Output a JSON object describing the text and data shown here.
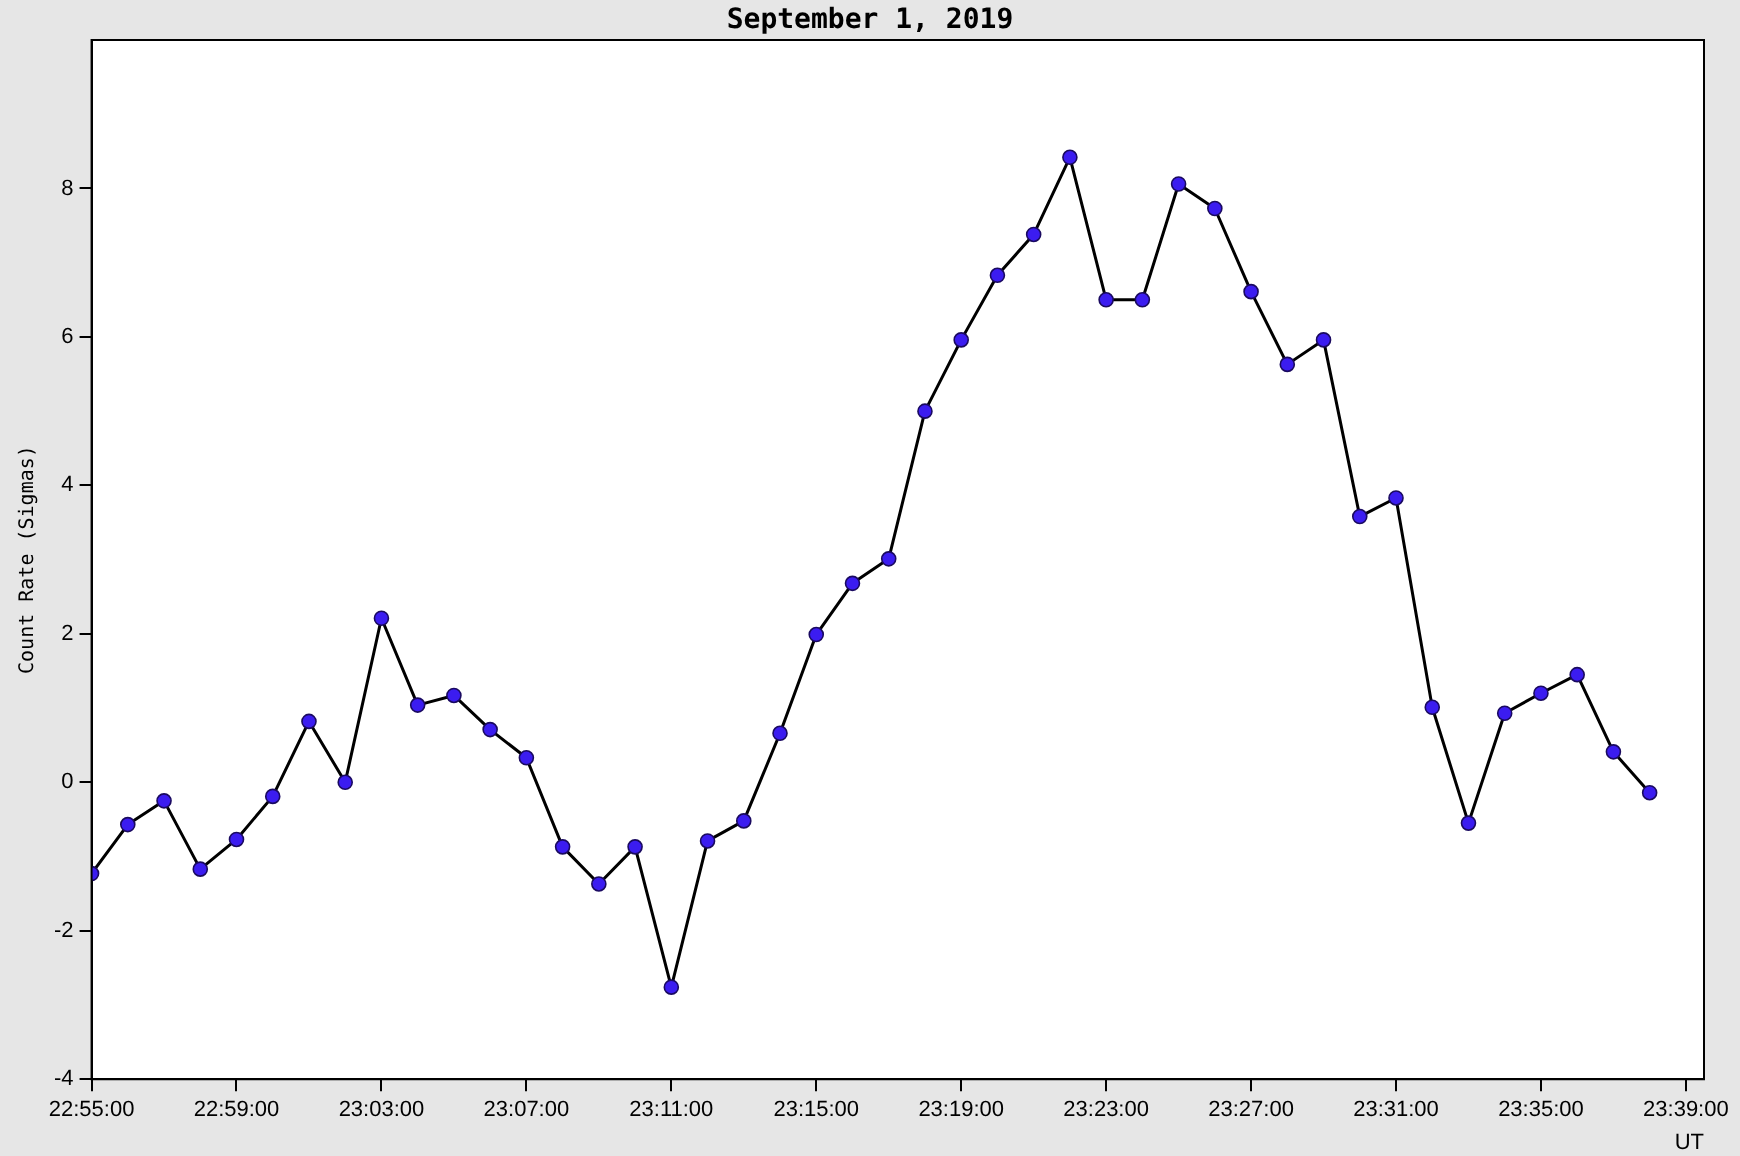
{
  "chart_data": {
    "type": "line",
    "title": "September 1, 2019",
    "xlabel": "UT",
    "ylabel": "Count Rate (Sigmas)",
    "x": [
      "2019-09-01T22:55",
      "2019-09-01T22:56",
      "2019-09-01T22:57",
      "2019-09-01T22:58",
      "2019-09-01T22:59",
      "2019-09-01T23:00",
      "2019-09-01T23:01",
      "2019-09-01T23:02",
      "2019-09-01T23:03",
      "2019-09-01T23:04",
      "2019-09-01T23:05",
      "2019-09-01T23:06",
      "2019-09-01T23:07",
      "2019-09-01T23:08",
      "2019-09-01T23:09",
      "2019-09-01T23:10",
      "2019-09-01T23:11",
      "2019-09-01T23:12",
      "2019-09-01T23:13",
      "2019-09-01T23:14",
      "2019-09-01T23:15",
      "2019-09-01T23:16",
      "2019-09-01T23:17",
      "2019-09-01T23:18",
      "2019-09-01T23:19",
      "2019-09-01T23:20",
      "2019-09-01T23:21",
      "2019-09-01T23:22",
      "2019-09-01T23:23",
      "2019-09-01T23:24",
      "2019-09-01T23:25",
      "2019-09-01T23:26",
      "2019-09-01T23:27",
      "2019-09-01T23:28",
      "2019-09-01T23:29",
      "2019-09-01T23:30",
      "2019-09-01T23:31",
      "2019-09-01T23:32",
      "2019-09-01T23:33",
      "2019-09-01T23:34",
      "2019-09-01T23:35",
      "2019-09-01T23:36",
      "2019-09-01T23:37",
      "2019-09-01T23:38"
    ],
    "series": [
      {
        "color": "#3b1cf0",
        "values": [
          -1.23,
          -0.57,
          -0.25,
          -1.17,
          -0.77,
          -0.19,
          0.82,
          0,
          2.21,
          1.04,
          1.17,
          0.71,
          0.33,
          -0.87,
          -1.37,
          -0.87,
          -2.76,
          -0.79,
          -0.52,
          0.66,
          1.99,
          2.68,
          3.01,
          5.0,
          5.96,
          6.83,
          7.38,
          8.42,
          6.5,
          6.5,
          8.06,
          7.73,
          6.61,
          5.63,
          5.96,
          3.58,
          3.83,
          1.01,
          -0.55,
          0.93,
          1.2,
          1.45,
          0.41,
          -0.14
        ]
      }
    ],
    "xlim": [
      "2019-09-01T22:55",
      "2019-09-01T23:39:30"
    ],
    "xticks": [
      {
        "value": "2019-09-01T22:55",
        "label": "22:55:00"
      },
      {
        "value": "2019-09-01T22:59",
        "label": "22:59:00"
      },
      {
        "value": "2019-09-01T23:03",
        "label": "23:03:00"
      },
      {
        "value": "2019-09-01T23:07",
        "label": "23:07:00"
      },
      {
        "value": "2019-09-01T23:11",
        "label": "23:11:00"
      },
      {
        "value": "2019-09-01T23:15",
        "label": "23:15:00"
      },
      {
        "value": "2019-09-01T23:19",
        "label": "23:19:00"
      },
      {
        "value": "2019-09-01T23:23",
        "label": "23:23:00"
      },
      {
        "value": "2019-09-01T23:27",
        "label": "23:27:00"
      },
      {
        "value": "2019-09-01T23:31",
        "label": "23:31:00"
      },
      {
        "value": "2019-09-01T23:35",
        "label": "23:35:00"
      },
      {
        "value": "2019-09-01T23:39",
        "label": "23:39:00"
      }
    ],
    "ylim": [
      -4,
      10
    ],
    "yticks": [
      -4,
      -2,
      0,
      2,
      4,
      6,
      8
    ],
    "grid": false,
    "legend": false,
    "marker": "circle",
    "line_style": "solid"
  }
}
